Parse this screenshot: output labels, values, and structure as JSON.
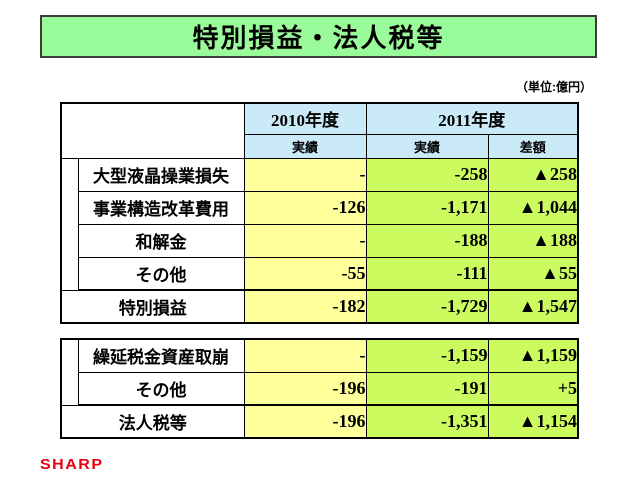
{
  "slide": {
    "title": "特別損益・法人税等",
    "unit_label": "（単位:億円）",
    "logo_text": "SHARP"
  },
  "colors": {
    "banner_green": "#9AFB9A",
    "header_blue": "#CBEAF8",
    "fy2010_yellow": "#FFFF9C",
    "fy2011_green": "#CCFB60",
    "logo_red": "#E60012",
    "border_black": "#000000"
  },
  "header": {
    "y2010": "2010年度",
    "y2011": "2011年度",
    "actual2010": "実績",
    "actual2011": "実績",
    "diff": "差額"
  },
  "table1": {
    "rows": [
      {
        "label": "大型液晶操業損失",
        "y2010": "-",
        "y2011": "-258",
        "diff": "▲258"
      },
      {
        "label": "事業構造改革費用",
        "y2010": "-126",
        "y2011": "-1,171",
        "diff": "▲1,044"
      },
      {
        "label": "和解金",
        "y2010": "-",
        "y2011": "-188",
        "diff": "▲188"
      },
      {
        "label": "その他",
        "y2010": "-55",
        "y2011": "-111",
        "diff": "▲55"
      }
    ],
    "total": {
      "label": "特別損益",
      "y2010": "-182",
      "y2011": "-1,729",
      "diff": "▲1,547"
    }
  },
  "table2": {
    "rows": [
      {
        "label": "繰延税金資産取崩",
        "y2010": "-",
        "y2011": "-1,159",
        "diff": "▲1,159"
      },
      {
        "label": "その他",
        "y2010": "-196",
        "y2011": "-191",
        "diff": "+5"
      }
    ],
    "total": {
      "label": "法人税等",
      "y2010": "-196",
      "y2011": "-1,351",
      "diff": "▲1,154"
    }
  }
}
